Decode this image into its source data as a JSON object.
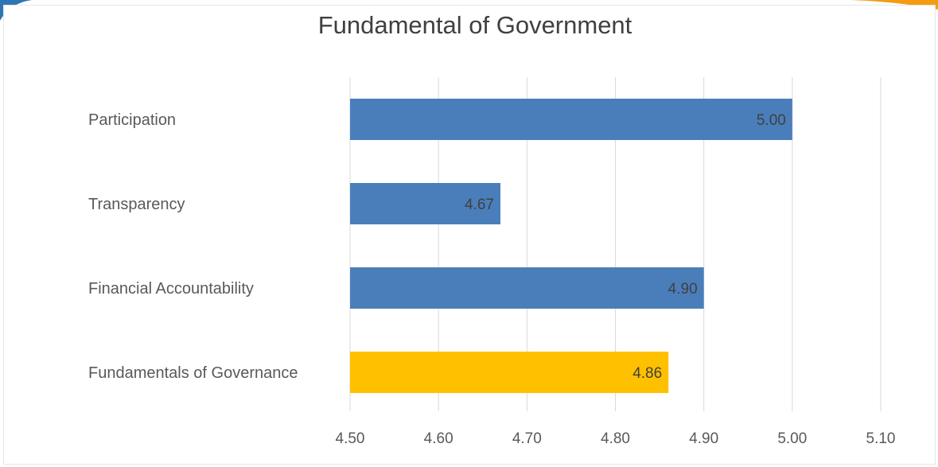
{
  "chart_data": {
    "type": "bar",
    "orientation": "horizontal",
    "title": "Fundamental of Government",
    "categories": [
      "Participation",
      "Transparency",
      "Financial Accountability",
      "Fundamentals of Governance"
    ],
    "values": [
      5.0,
      4.67,
      4.9,
      4.86
    ],
    "data_labels": [
      "5.00",
      "4.67",
      "4.90",
      "4.86"
    ],
    "bar_colors": [
      "#4a7ebb",
      "#4a7ebb",
      "#4a7ebb",
      "#ffc000"
    ],
    "xlim": [
      4.5,
      5.1
    ],
    "x_ticks": [
      "4.50",
      "4.60",
      "4.70",
      "4.80",
      "4.90",
      "5.00",
      "5.10"
    ],
    "grid": true,
    "legend": "none"
  },
  "colors": {
    "series": "#4a7ebb",
    "highlight": "#ffc000",
    "grid": "#d9d9d9",
    "corner_left": "#2e75b6",
    "corner_right": "#f39c12"
  }
}
